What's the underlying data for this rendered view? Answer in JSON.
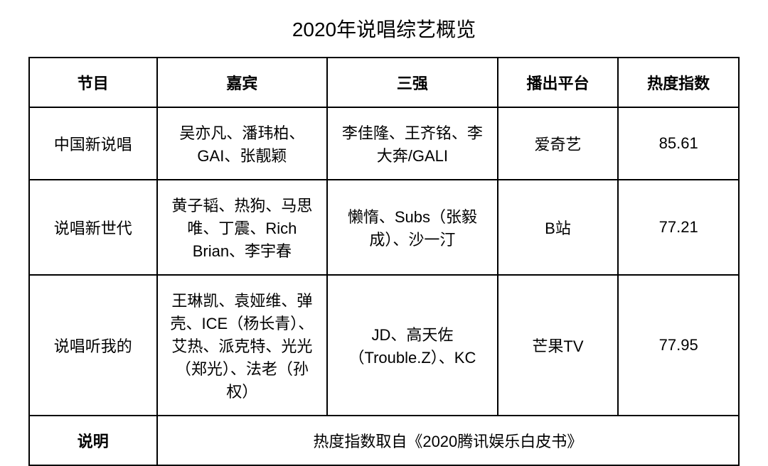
{
  "title": "2020年说唱综艺概览",
  "columns": {
    "program": "节目",
    "guests": "嘉宾",
    "top3": "三强",
    "platform": "播出平台",
    "heat": "热度指数"
  },
  "rows": [
    {
      "program": "中国新说唱",
      "guests": "吴亦凡、潘玮柏、GAI、张靓颖",
      "top3": "李佳隆、王齐铭、李大奔/GALI",
      "platform": "爱奇艺",
      "heat": "85.61"
    },
    {
      "program": "说唱新世代",
      "guests": "黄子韬、热狗、马思唯、丁震、Rich Brian、李宇春",
      "top3": "懒惰、Subs（张毅成）、沙一汀",
      "platform": "B站",
      "heat": "77.21"
    },
    {
      "program": "说唱听我的",
      "guests": "王琳凯、袁娅维、弹壳、ICE（杨长青）、艾热、派克特、光光（郑光）、法老（孙权）",
      "top3": "JD、高天佐（Trouble.Z）、KC",
      "platform": "芒果TV",
      "heat": "77.95"
    }
  ],
  "footer": {
    "label": "说明",
    "value": "热度指数取自《2020腾讯娱乐白皮书》"
  },
  "styles": {
    "border_color": "#000000",
    "text_color": "#000000",
    "background_color": "#ffffff",
    "title_fontsize": 28,
    "header_fontsize": 22,
    "cell_fontsize": 22,
    "header_fontweight": 700,
    "cell_fontweight": 400,
    "border_width": 2,
    "column_widths": [
      "18%",
      "24%",
      "24%",
      "17%",
      "17%"
    ]
  }
}
